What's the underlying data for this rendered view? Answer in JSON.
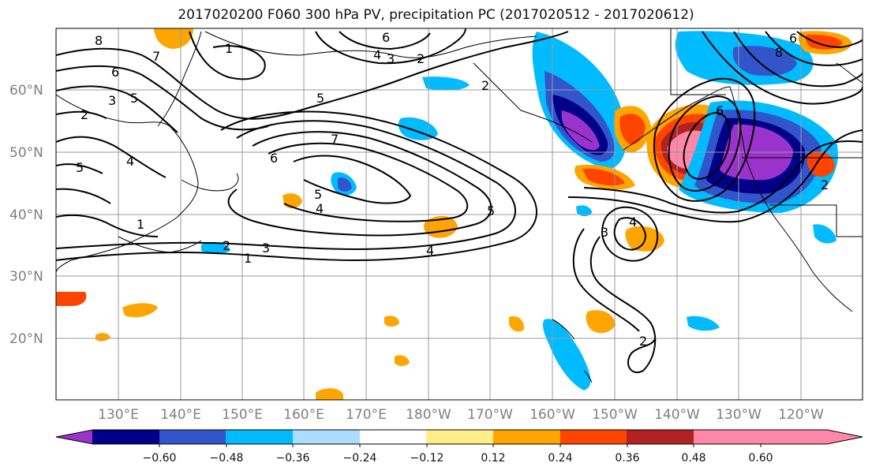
{
  "title": "2017020200 F060 300 hPa PV, precipitation PC (2017020512 - 2017020612)",
  "map": {
    "lat_labels": [
      "60°N",
      "50°N",
      "40°N",
      "30°N",
      "20°N"
    ],
    "lon_labels": [
      "130°E",
      "140°E",
      "150°E",
      "160°E",
      "170°E",
      "180°W",
      "170°W",
      "160°W",
      "150°W",
      "140°W",
      "130°W",
      "120°W"
    ],
    "contour_labels": [
      "8",
      "6",
      "5",
      "4",
      "3",
      "2",
      "1",
      "7",
      "6",
      "5",
      "4",
      "3",
      "2",
      "1",
      "5",
      "4",
      "3",
      "2",
      "1",
      "4",
      "5",
      "6",
      "7",
      "2",
      "6",
      "5",
      "4",
      "3",
      "2",
      "6",
      "8",
      "2"
    ]
  },
  "colorbar": {
    "tick_labels": [
      "−0.60",
      "−0.48",
      "−0.36",
      "−0.24",
      "−0.12",
      "0.12",
      "0.24",
      "0.36",
      "0.48",
      "0.60"
    ],
    "colors": [
      "#9933cc",
      "#000088",
      "#3355cc",
      "#00bbff",
      "#aaddff",
      "#ffffff",
      "#ffee88",
      "#ffa500",
      "#ff4400",
      "#b22222",
      "#ff88aa"
    ]
  }
}
